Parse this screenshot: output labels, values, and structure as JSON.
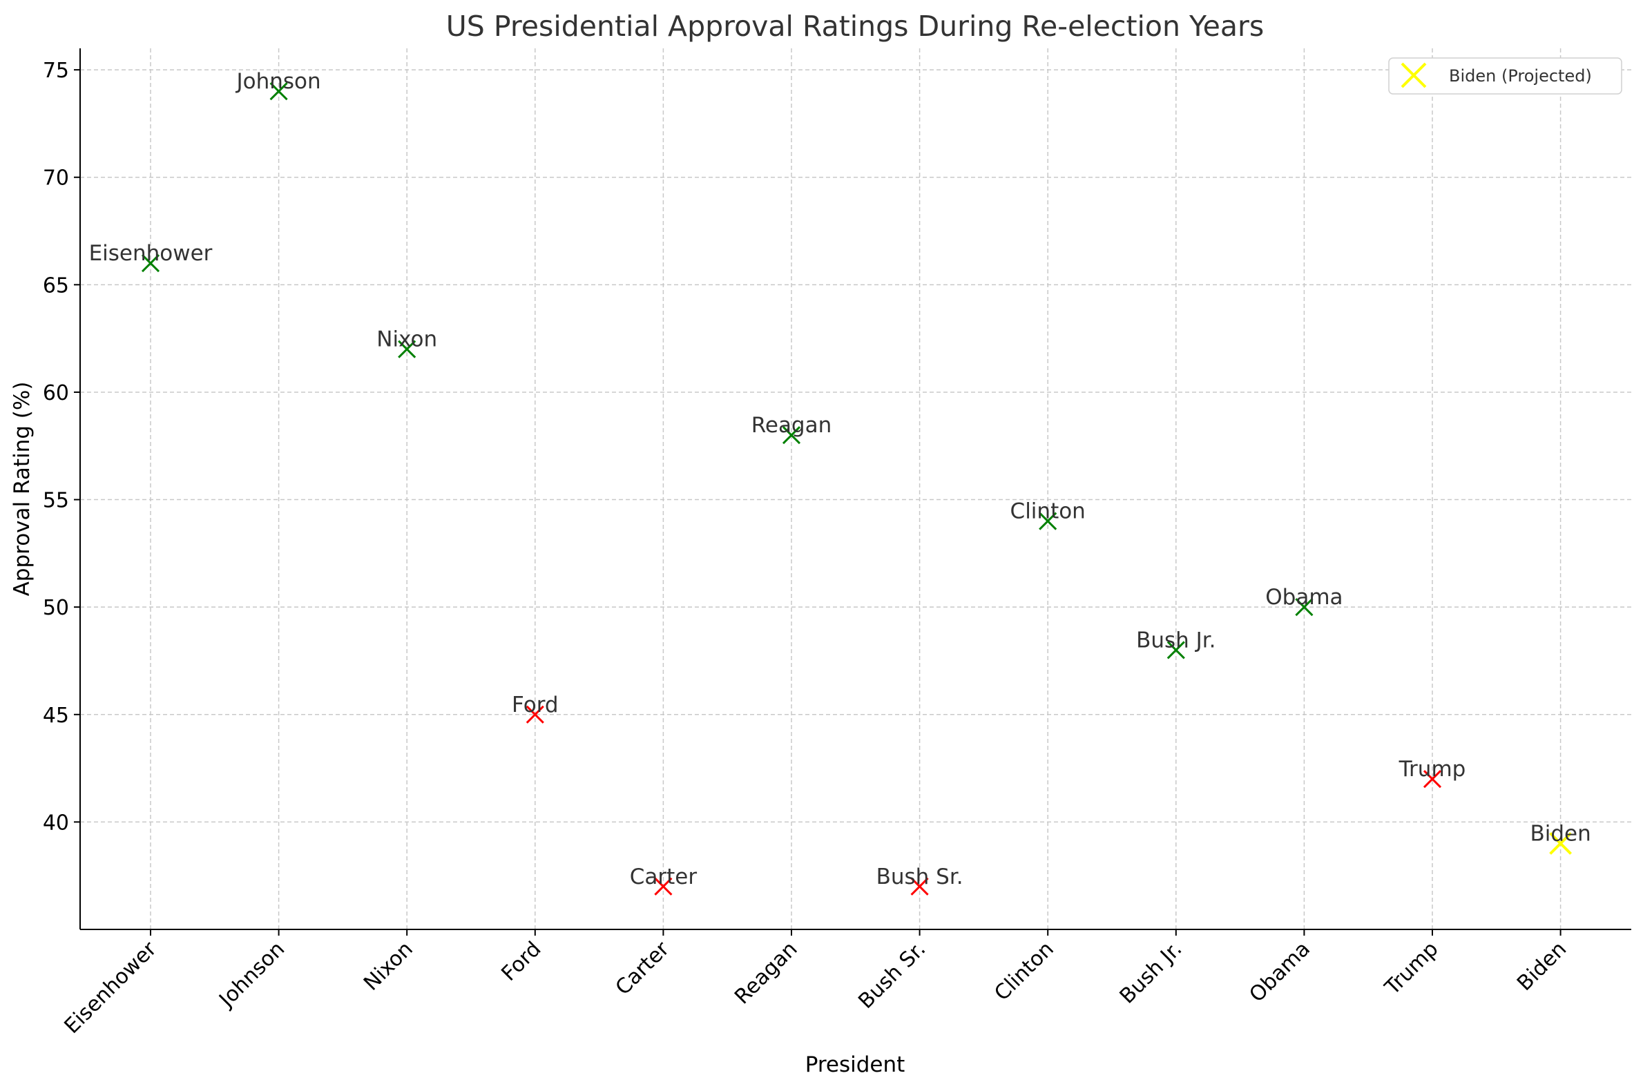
{
  "chart_data": {
    "type": "scatter",
    "title": "US Presidential Approval Ratings During Re-election Years",
    "xlabel": "President",
    "ylabel": "Approval Rating (%)",
    "ylim": [
      35,
      76
    ],
    "yticks": [
      40,
      45,
      50,
      55,
      60,
      65,
      70,
      75
    ],
    "grid": true,
    "marker": "x",
    "categories": [
      "Eisenhower",
      "Johnson",
      "Nixon",
      "Ford",
      "Carter",
      "Reagan",
      "Bush Sr.",
      "Clinton",
      "Bush Jr.",
      "Obama",
      "Trump",
      "Biden"
    ],
    "values": [
      66,
      74,
      62,
      45,
      37,
      58,
      37,
      54,
      48,
      50,
      42,
      39
    ],
    "point_colors": [
      "#008000",
      "#008000",
      "#008000",
      "#ff0000",
      "#ff0000",
      "#008000",
      "#ff0000",
      "#008000",
      "#008000",
      "#008000",
      "#ff0000",
      "#ffff00"
    ],
    "projected_index": 11,
    "legend": {
      "placement": "top-right",
      "entries": [
        {
          "label": "Biden (Projected)",
          "color": "#ffff00",
          "marker": "x"
        }
      ]
    }
  }
}
